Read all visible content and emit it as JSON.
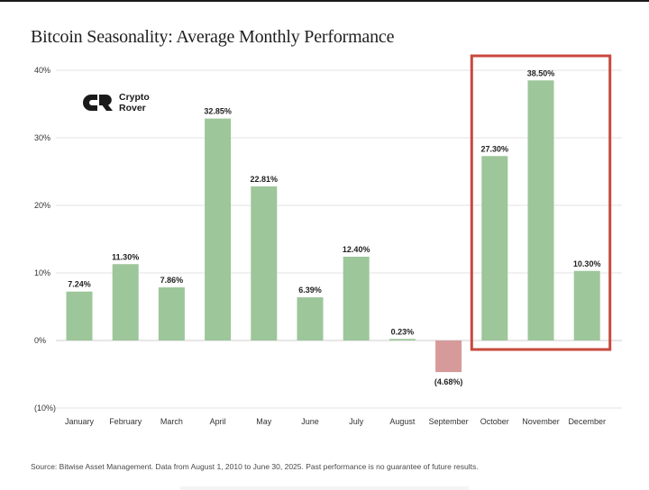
{
  "title": "Bitcoin Seasonality: Average Monthly Performance",
  "logo": {
    "line1": "Crypto",
    "line2": "Rover",
    "icon": "crypto-rover-logo-icon"
  },
  "source": "Source: Bitwise Asset Management. Data from August 1, 2010 to June 30, 2025. Past performance is no guarantee of future results.",
  "colors": {
    "positive": "#9dc69a",
    "negative": "#d69a9a",
    "highlight": "#c8493e",
    "grid": "#e3e3e3",
    "text": "#222222"
  },
  "chart_data": {
    "type": "bar",
    "title": "Bitcoin Seasonality: Average Monthly Performance",
    "categories": [
      "January",
      "February",
      "March",
      "April",
      "May",
      "June",
      "July",
      "August",
      "September",
      "October",
      "November",
      "December"
    ],
    "values": [
      7.24,
      11.3,
      7.86,
      32.85,
      22.81,
      6.39,
      12.4,
      0.23,
      -4.68,
      27.3,
      38.5,
      10.3
    ],
    "value_labels": [
      "7.24%",
      "11.30%",
      "7.86%",
      "32.85%",
      "22.81%",
      "6.39%",
      "12.40%",
      "0.23%",
      "(4.68%)",
      "27.30%",
      "38.50%",
      "10.30%"
    ],
    "yticks": [
      40,
      30,
      20,
      10,
      0,
      -10
    ],
    "ytick_labels": [
      "40%",
      "30%",
      "20%",
      "10%",
      "0%",
      "(10%)"
    ],
    "ylim": [
      -10,
      40
    ],
    "xlabel": "",
    "ylabel": "",
    "grid": true,
    "highlight_range": [
      "October",
      "December"
    ]
  }
}
